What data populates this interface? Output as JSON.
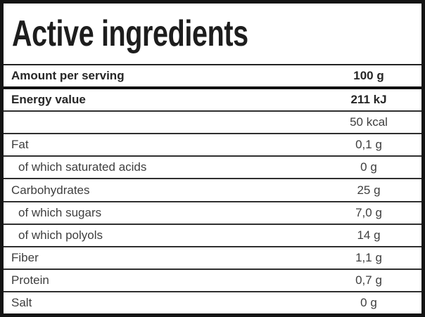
{
  "table": {
    "title": "Active ingredients",
    "rows": [
      {
        "label": "Amount per serving",
        "value": "100 g",
        "bold": true,
        "indent": false,
        "thick_divider": true
      },
      {
        "label": "Energy value",
        "value": "211 kJ",
        "bold": true,
        "indent": false,
        "thick_divider": false
      },
      {
        "label": "",
        "value": "50 kcal",
        "bold": false,
        "indent": false,
        "thick_divider": false
      },
      {
        "label": "Fat",
        "value": "0,1 g",
        "bold": false,
        "indent": false,
        "thick_divider": false
      },
      {
        "label": "of which saturated acids",
        "value": "0 g",
        "bold": false,
        "indent": true,
        "thick_divider": false
      },
      {
        "label": "Carbohydrates",
        "value": "25 g",
        "bold": false,
        "indent": false,
        "thick_divider": false
      },
      {
        "label": "of which sugars",
        "value": "7,0 g",
        "bold": false,
        "indent": true,
        "thick_divider": false
      },
      {
        "label": "of which polyols",
        "value": "14 g",
        "bold": false,
        "indent": true,
        "thick_divider": false
      },
      {
        "label": "Fiber",
        "value": "1,1 g",
        "bold": false,
        "indent": false,
        "thick_divider": false
      },
      {
        "label": "Protein",
        "value": "0,7 g",
        "bold": false,
        "indent": false,
        "thick_divider": false
      },
      {
        "label": "Salt",
        "value": "0 g",
        "bold": false,
        "indent": false,
        "thick_divider": false
      }
    ],
    "colors": {
      "border": "#141414",
      "thin_divider": "#2f2f2f",
      "thick_divider": "#111111",
      "title_text": "#1d1d1d",
      "row_text": "#3e3e3e",
      "bold_row_text": "#262626",
      "background": "#ffffff"
    }
  }
}
